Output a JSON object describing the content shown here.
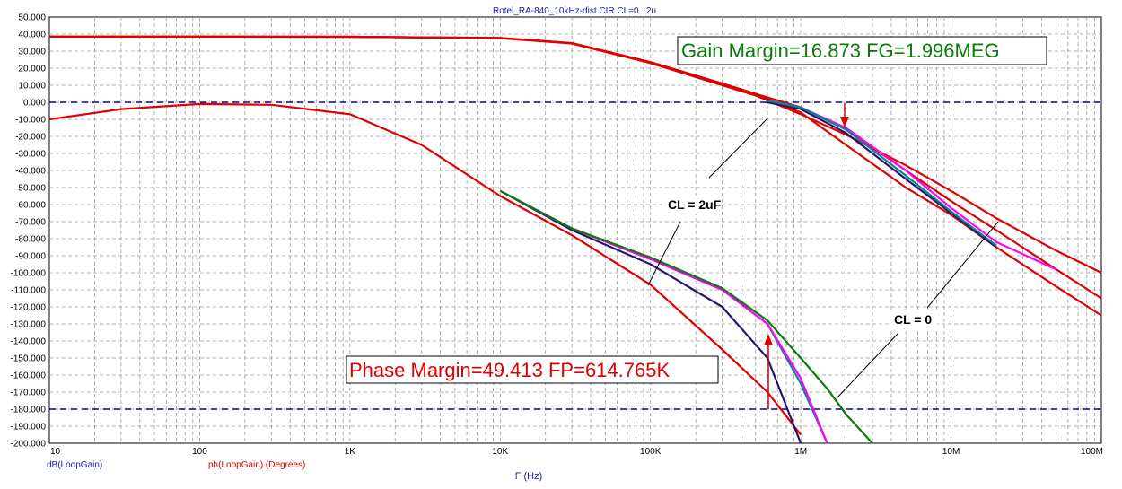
{
  "chart_data": {
    "type": "line",
    "title": "Rotel_RA-840_10kHz-dist.CIR CL=0...2u",
    "xlabel": "F (Hz)",
    "x_scale": "log",
    "xlim": [
      10,
      100000000
    ],
    "ylim": [
      -200,
      50
    ],
    "x_tick_labels": [
      "10",
      "100",
      "1K",
      "10K",
      "100K",
      "1M",
      "10M",
      "100M"
    ],
    "y_ticks": [
      50,
      40,
      30,
      20,
      10,
      0,
      -10,
      -20,
      -30,
      -40,
      -50,
      -60,
      -70,
      -80,
      -90,
      -100,
      -110,
      -120,
      -130,
      -140,
      -150,
      -160,
      -170,
      -180,
      -190,
      -200
    ],
    "y_tick_labels": [
      "50.000",
      "40.000",
      "30.000",
      "20.000",
      "10.000",
      "0.000",
      "-10.000",
      "-20.000",
      "-30.000",
      "-40.000",
      "-50.000",
      "-60.000",
      "-70.000",
      "-80.000",
      "-90.000",
      "-100.000",
      "-110.000",
      "-120.000",
      "-130.000",
      "-140.000",
      "-150.000",
      "-160.000",
      "-170.000",
      "-180.000",
      "-190.000",
      "-200.000"
    ],
    "legend": [
      "dB(LoopGain)",
      "ph(LoopGain) (Degrees)"
    ],
    "grid": true,
    "reference_lines": [
      0,
      -180
    ],
    "annotations": {
      "gain_margin": "Gain Margin=16.873 FG=1.996MEG",
      "phase_margin": "Phase Margin=49.413 FP=614.765K",
      "cl_2uf": "CL = 2uF",
      "cl_0": "CL = 0"
    },
    "series": [
      {
        "group": "gain",
        "color": "#e00000",
        "x": [
          10,
          100,
          1000,
          10000,
          30000,
          100000,
          300000,
          500000,
          1000000,
          2000000,
          5000000,
          10000000,
          20000000,
          50000000,
          100000000
        ],
        "y": [
          38.5,
          38.5,
          38.4,
          37.6,
          34.5,
          23,
          10,
          4,
          -7,
          -19,
          -37,
          -52,
          -68,
          -87,
          -100
        ]
      },
      {
        "group": "gain",
        "color": "#e00000",
        "x": [
          10,
          100,
          1000,
          10000,
          30000,
          100000,
          300000,
          500000,
          1000000,
          2000000,
          5000000,
          10000000,
          20000000,
          50000000,
          100000000
        ],
        "y": [
          38.5,
          38.5,
          38.4,
          37.7,
          34.7,
          23.5,
          11,
          5,
          -3,
          -16,
          -40,
          -58,
          -75,
          -98,
          -115
        ]
      },
      {
        "group": "gain",
        "color": "#e00000",
        "x": [
          10,
          100,
          1000,
          10000,
          30000,
          100000,
          300000,
          500000,
          1000000,
          2000000,
          5000000,
          10000000,
          20000000,
          50000000,
          100000000
        ],
        "y": [
          38.5,
          38.5,
          38.4,
          37.7,
          34.7,
          23.5,
          11,
          5,
          -6,
          -25,
          -50,
          -66,
          -85,
          -108,
          -125
        ]
      },
      {
        "group": "gain",
        "color": "#2a1470",
        "x": [
          600000,
          1000000,
          2000000,
          5000000,
          10000000,
          20000000
        ],
        "y": [
          0,
          -4,
          -18,
          -45,
          -65,
          -85
        ]
      },
      {
        "group": "gain",
        "color": "#ff00ff",
        "x": [
          600000,
          1000000,
          2000000,
          5000000,
          10000000,
          20000000,
          50000000
        ],
        "y": [
          1,
          -3,
          -15,
          -40,
          -62,
          -82,
          -98
        ]
      },
      {
        "group": "gain",
        "color": "#008b8b",
        "x": [
          600000,
          1000000,
          2000000,
          5000000,
          10000000,
          20000000
        ],
        "y": [
          1,
          -3,
          -16,
          -43,
          -64,
          -84
        ]
      },
      {
        "group": "phase",
        "color": "#e00000",
        "x": [
          10,
          30,
          100,
          300,
          1000,
          3000,
          10000,
          30000,
          100000,
          300000,
          600000,
          1000000
        ],
        "y": [
          -10,
          -4,
          -1,
          -1.5,
          -7,
          -25,
          -55,
          -78,
          -107,
          -145,
          -170,
          -195
        ]
      },
      {
        "group": "phase",
        "color": "#2a1470",
        "x": [
          10000,
          30000,
          100000,
          300000,
          600000,
          1000000
        ],
        "y": [
          -52,
          -75,
          -95,
          -120,
          -150,
          -200
        ]
      },
      {
        "group": "phase",
        "color": "#008b8b",
        "x": [
          10000,
          30000,
          100000,
          300000,
          600000,
          1000000,
          1500000
        ],
        "y": [
          -52,
          -74,
          -92,
          -110,
          -130,
          -165,
          -200
        ]
      },
      {
        "group": "phase",
        "color": "#ff00ff",
        "x": [
          10000,
          30000,
          100000,
          300000,
          600000,
          1000000,
          1500000
        ],
        "y": [
          -52,
          -74,
          -92,
          -110,
          -130,
          -162,
          -200
        ]
      },
      {
        "group": "phase",
        "color": "#0b7a0b",
        "x": [
          10000,
          30000,
          100000,
          300000,
          600000,
          1000000,
          1500000,
          2000000,
          3000000
        ],
        "y": [
          -52,
          -74,
          -91,
          -109,
          -128,
          -150,
          -168,
          -183,
          -200
        ]
      }
    ]
  }
}
